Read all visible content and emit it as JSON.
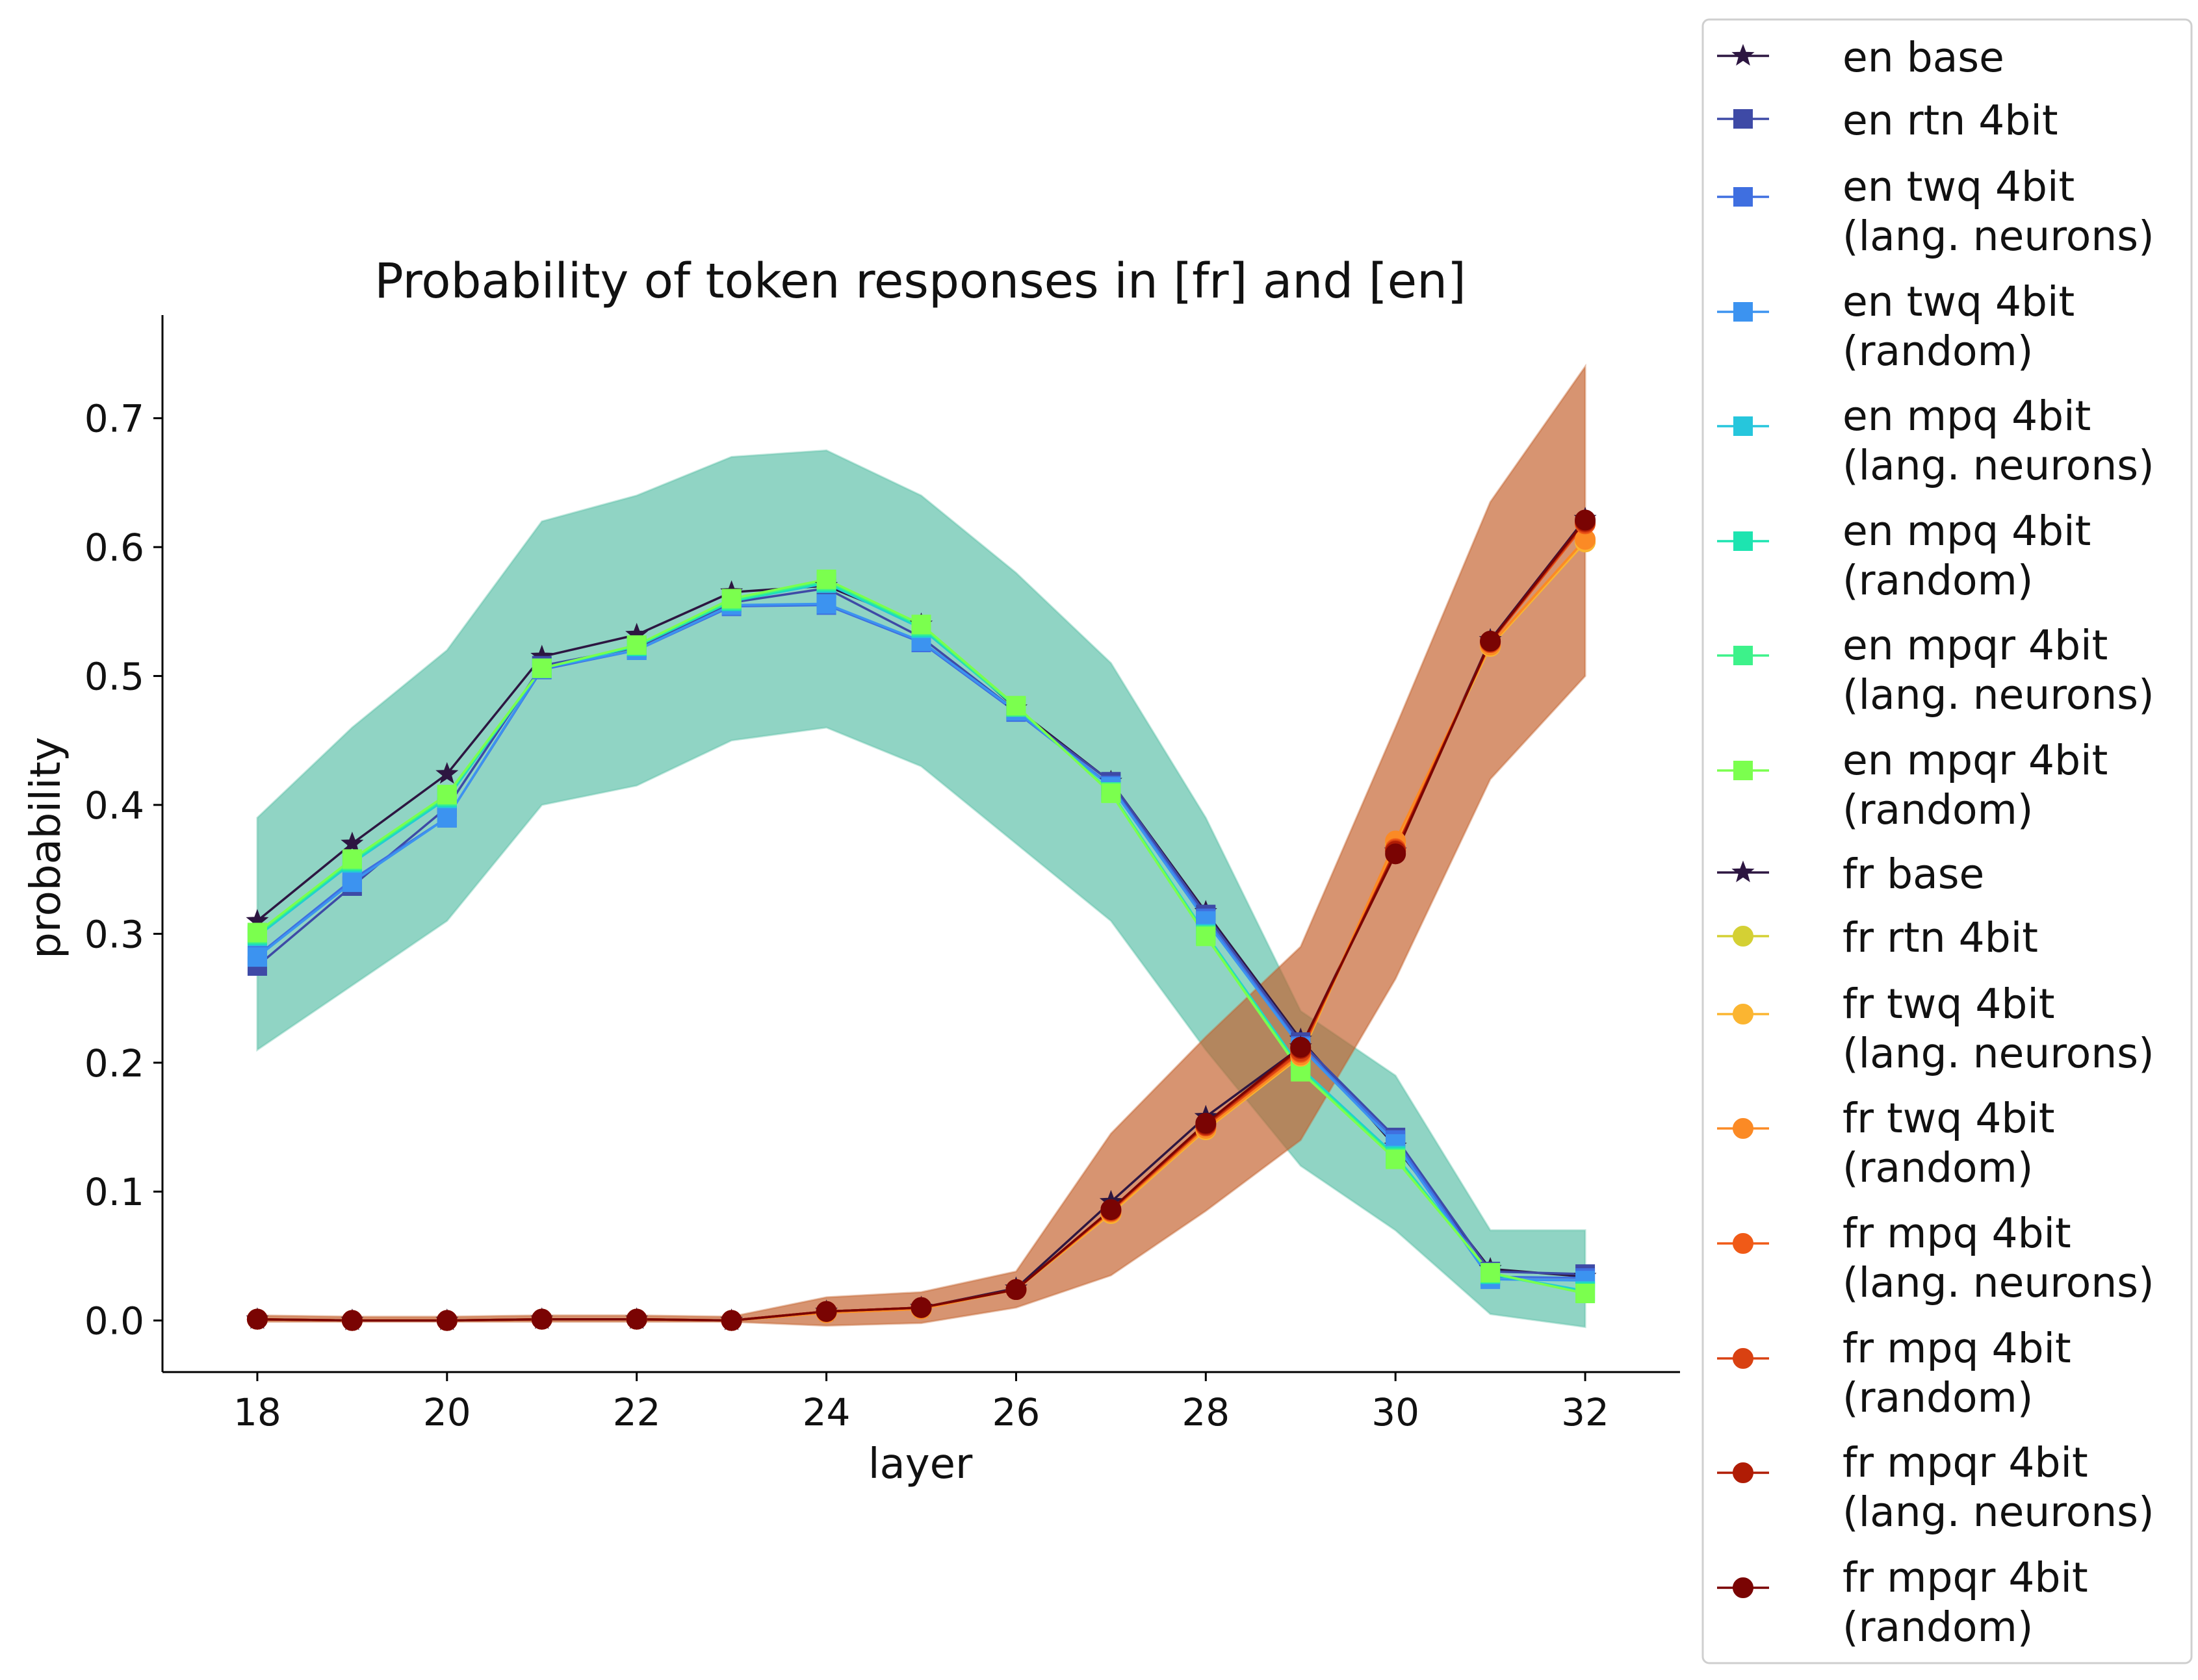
{
  "chart_data": {
    "type": "line",
    "title": "Probability of token responses in [fr] and [en]",
    "xlabel": "layer",
    "ylabel": "probability",
    "xlim": [
      17,
      33
    ],
    "ylim": [
      -0.04,
      0.78
    ],
    "xticks": [
      18,
      20,
      22,
      24,
      26,
      28,
      30,
      32
    ],
    "xtick_labels": [
      "18",
      "20",
      "22",
      "24",
      "26",
      "28",
      "30",
      "32"
    ],
    "yticks": [
      0.0,
      0.1,
      0.2,
      0.3,
      0.4,
      0.5,
      0.6,
      0.7
    ],
    "ytick_labels": [
      "0.0",
      "0.1",
      "0.2",
      "0.3",
      "0.4",
      "0.5",
      "0.6",
      "0.7"
    ],
    "grid": false,
    "legend_position": "outside-right",
    "x": [
      18,
      19,
      20,
      21,
      22,
      23,
      24,
      25,
      26,
      27,
      28,
      29,
      30,
      31,
      32
    ],
    "bands": [
      {
        "name": "en",
        "color": "#5cc0a8",
        "upper": [
          0.39,
          0.46,
          0.52,
          0.62,
          0.64,
          0.67,
          0.675,
          0.64,
          0.58,
          0.51,
          0.39,
          0.24,
          0.19,
          0.07,
          0.07
        ],
        "lower": [
          0.21,
          0.26,
          0.31,
          0.4,
          0.415,
          0.45,
          0.46,
          0.43,
          0.37,
          0.31,
          0.21,
          0.12,
          0.07,
          0.005,
          -0.005
        ]
      },
      {
        "name": "fr",
        "color": "#c4622e",
        "upper": [
          0.004,
          0.003,
          0.003,
          0.004,
          0.004,
          0.003,
          0.018,
          0.022,
          0.038,
          0.145,
          0.22,
          0.29,
          0.46,
          0.635,
          0.74
        ],
        "lower": [
          -0.001,
          -0.001,
          -0.001,
          -0.001,
          -0.001,
          -0.001,
          -0.004,
          -0.002,
          0.01,
          0.035,
          0.085,
          0.14,
          0.265,
          0.42,
          0.5
        ]
      }
    ],
    "series": [
      {
        "name": "en base",
        "color": "#2d1641",
        "marker": "star",
        "values": [
          0.31,
          0.37,
          0.424,
          0.515,
          0.532,
          0.565,
          0.57,
          0.54,
          0.475,
          0.418,
          0.317,
          0.218,
          0.135,
          0.04,
          0.034
        ]
      },
      {
        "name": "en rtn 4bit",
        "color": "#3e4aa6",
        "marker": "square",
        "values": [
          0.275,
          0.337,
          0.398,
          0.508,
          0.522,
          0.557,
          0.568,
          0.53,
          0.473,
          0.418,
          0.315,
          0.216,
          0.142,
          0.038,
          0.036
        ]
      },
      {
        "name": "en twq 4bit\n(lang. neurons)",
        "color": "#3f6fe0",
        "marker": "square",
        "values": [
          0.283,
          0.342,
          0.39,
          0.505,
          0.52,
          0.554,
          0.555,
          0.526,
          0.472,
          0.415,
          0.312,
          0.213,
          0.14,
          0.034,
          0.033
        ]
      },
      {
        "name": "en twq 4bit\n(random)",
        "color": "#3c93f0",
        "marker": "square",
        "values": [
          0.282,
          0.34,
          0.39,
          0.506,
          0.52,
          0.555,
          0.556,
          0.527,
          0.473,
          0.414,
          0.31,
          0.212,
          0.137,
          0.032,
          0.031
        ]
      },
      {
        "name": "en mpq 4bit\n(lang. neurons)",
        "color": "#26c6dc",
        "marker": "square",
        "values": [
          0.298,
          0.355,
          0.405,
          0.506,
          0.523,
          0.558,
          0.572,
          0.537,
          0.476,
          0.41,
          0.3,
          0.196,
          0.128,
          0.036,
          0.023
        ]
      },
      {
        "name": "en mpq 4bit\n(random)",
        "color": "#1de4b0",
        "marker": "square",
        "values": [
          0.299,
          0.356,
          0.406,
          0.506,
          0.523,
          0.558,
          0.573,
          0.538,
          0.476,
          0.41,
          0.299,
          0.195,
          0.127,
          0.036,
          0.022
        ]
      },
      {
        "name": "en mpqr 4bit\n(lang. neurons)",
        "color": "#3df28a",
        "marker": "square",
        "values": [
          0.3,
          0.357,
          0.407,
          0.506,
          0.524,
          0.559,
          0.574,
          0.539,
          0.476,
          0.41,
          0.299,
          0.194,
          0.126,
          0.037,
          0.021
        ]
      },
      {
        "name": "en mpqr 4bit\n(random)",
        "color": "#7bff4e",
        "marker": "square",
        "values": [
          0.301,
          0.358,
          0.408,
          0.506,
          0.524,
          0.56,
          0.575,
          0.54,
          0.477,
          0.409,
          0.298,
          0.193,
          0.125,
          0.037,
          0.021
        ]
      },
      {
        "name": "fr base",
        "color": "#2d1641",
        "marker": "star",
        "values": [
          0.001,
          0.0,
          0.0,
          0.001,
          0.001,
          0.0,
          0.007,
          0.01,
          0.025,
          0.092,
          0.158,
          0.212,
          0.364,
          0.528,
          0.622
        ]
      },
      {
        "name": "fr rtn 4bit",
        "color": "#d4d034",
        "marker": "circle",
        "values": [
          0.001,
          0.0,
          0.0,
          0.001,
          0.001,
          0.0,
          0.006,
          0.009,
          0.024,
          0.083,
          0.148,
          0.205,
          0.37,
          0.523,
          0.604
        ]
      },
      {
        "name": "fr twq 4bit\n(lang. neurons)",
        "color": "#fbb531",
        "marker": "circle",
        "values": [
          0.001,
          0.0,
          0.0,
          0.001,
          0.001,
          0.0,
          0.006,
          0.009,
          0.024,
          0.083,
          0.148,
          0.205,
          0.37,
          0.523,
          0.604
        ]
      },
      {
        "name": "fr twq 4bit\n(random)",
        "color": "#fb8a25",
        "marker": "circle",
        "values": [
          0.001,
          0.0,
          0.0,
          0.001,
          0.001,
          0.0,
          0.006,
          0.009,
          0.024,
          0.084,
          0.149,
          0.206,
          0.372,
          0.524,
          0.606
        ]
      },
      {
        "name": "fr mpq 4bit\n(lang. neurons)",
        "color": "#f05a17",
        "marker": "circle",
        "values": [
          0.001,
          0.0,
          0.0,
          0.001,
          0.001,
          0.0,
          0.007,
          0.01,
          0.024,
          0.085,
          0.151,
          0.208,
          0.366,
          0.526,
          0.618
        ]
      },
      {
        "name": "fr mpq 4bit\n(random)",
        "color": "#d94112",
        "marker": "circle",
        "values": [
          0.001,
          0.0,
          0.0,
          0.001,
          0.001,
          0.0,
          0.007,
          0.01,
          0.024,
          0.085,
          0.151,
          0.209,
          0.365,
          0.526,
          0.619
        ]
      },
      {
        "name": "fr mpqr 4bit\n(lang. neurons)",
        "color": "#b01c05",
        "marker": "circle",
        "values": [
          0.001,
          0.0,
          0.0,
          0.001,
          0.001,
          0.0,
          0.007,
          0.01,
          0.024,
          0.086,
          0.152,
          0.211,
          0.364,
          0.527,
          0.62
        ]
      },
      {
        "name": "fr mpqr 4bit\n(random)",
        "color": "#7a0403",
        "marker": "circle",
        "values": [
          0.001,
          0.0,
          0.0,
          0.001,
          0.001,
          0.0,
          0.007,
          0.01,
          0.024,
          0.086,
          0.153,
          0.212,
          0.362,
          0.527,
          0.621
        ]
      }
    ]
  }
}
